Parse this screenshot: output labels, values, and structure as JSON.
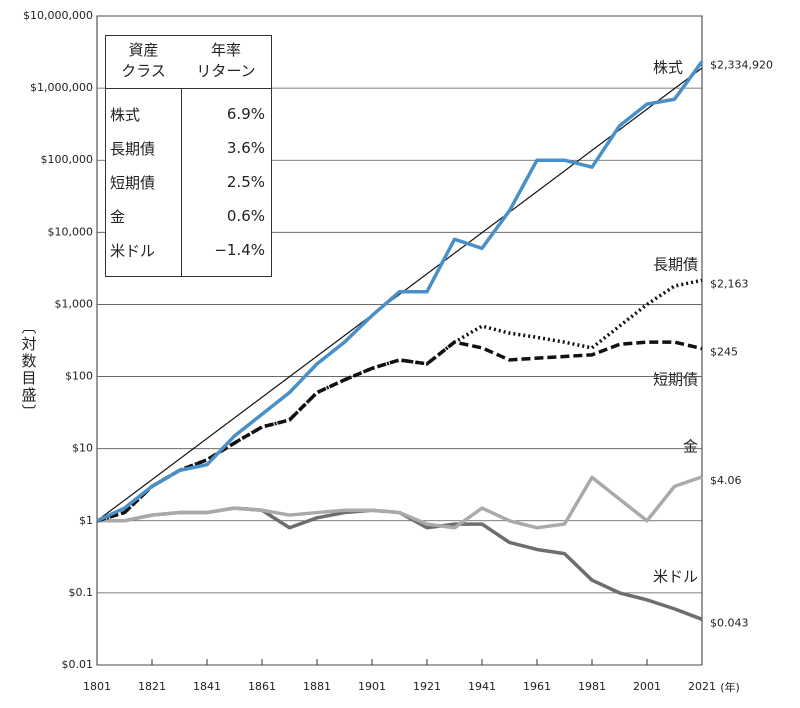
{
  "chart_data": {
    "type": "line",
    "log_y": true,
    "grid": true,
    "y_label": "〔対数目盛〕",
    "x_unit": "(年)",
    "x": [
      1801,
      1811,
      1821,
      1831,
      1841,
      1851,
      1861,
      1871,
      1881,
      1891,
      1901,
      1911,
      1921,
      1931,
      1941,
      1951,
      1961,
      1971,
      1981,
      1991,
      2001,
      2011,
      2021
    ],
    "xlim": [
      1801,
      2021
    ],
    "xticks": [
      1801,
      1821,
      1841,
      1861,
      1881,
      1901,
      1921,
      1941,
      1961,
      1981,
      2001,
      2021
    ],
    "ylim": [
      0.01,
      10000000
    ],
    "yticks": [
      {
        "value": 0.01,
        "label": "$0.01"
      },
      {
        "value": 0.1,
        "label": "$0.1"
      },
      {
        "value": 1,
        "label": "$1"
      },
      {
        "value": 10,
        "label": "$10"
      },
      {
        "value": 100,
        "label": "$100"
      },
      {
        "value": 1000,
        "label": "$1,000"
      },
      {
        "value": 10000,
        "label": "$10,000"
      },
      {
        "value": 100000,
        "label": "$100,000"
      },
      {
        "value": 1000000,
        "label": "$1,000,000"
      },
      {
        "value": 10000000,
        "label": "$10,000,000"
      }
    ],
    "series": [
      {
        "name": "株式",
        "color": "#4a90c8",
        "dash": "solid",
        "width": 3.5,
        "values": [
          1,
          1.5,
          3,
          5,
          6,
          15,
          30,
          60,
          150,
          300,
          700,
          1500,
          1500,
          8000,
          6000,
          20000,
          100000,
          100000,
          80000,
          300000,
          600000,
          700000,
          2334920
        ],
        "value_labels": [
          null,
          null,
          null,
          null,
          null,
          null,
          null,
          null,
          null,
          null,
          null,
          null,
          null,
          null,
          null,
          null,
          null,
          null,
          null,
          null,
          null,
          null,
          "$2,334,920"
        ]
      },
      {
        "name": "長期債",
        "color": "#111111",
        "dash": "dotted",
        "width": 3.5,
        "values": [
          1,
          1.3,
          3,
          5,
          7,
          12,
          20,
          25,
          60,
          90,
          130,
          170,
          150,
          300,
          500,
          400,
          350,
          300,
          250,
          500,
          1000,
          1800,
          2163
        ],
        "value_labels": [
          null,
          null,
          null,
          null,
          null,
          null,
          null,
          null,
          null,
          null,
          null,
          null,
          null,
          null,
          null,
          null,
          null,
          null,
          null,
          null,
          null,
          null,
          "$2,163"
        ]
      },
      {
        "name": "短期債",
        "color": "#111111",
        "dash": "dashed",
        "width": 3.5,
        "values": [
          1,
          1.3,
          3,
          5,
          7,
          12,
          20,
          25,
          60,
          90,
          130,
          170,
          150,
          300,
          250,
          170,
          180,
          190,
          200,
          280,
          300,
          300,
          245
        ],
        "value_labels": [
          null,
          null,
          null,
          null,
          null,
          null,
          null,
          null,
          null,
          null,
          null,
          null,
          null,
          null,
          null,
          null,
          null,
          null,
          null,
          null,
          null,
          null,
          "$245"
        ]
      },
      {
        "name": "金",
        "color": "#aaaaaa",
        "dash": "solid",
        "width": 3.5,
        "values": [
          1,
          1,
          1.2,
          1.3,
          1.3,
          1.5,
          1.4,
          1.2,
          1.3,
          1.4,
          1.4,
          1.3,
          0.9,
          0.8,
          1.5,
          1.0,
          0.8,
          0.9,
          4,
          2,
          1,
          3,
          4.06
        ],
        "value_labels": [
          null,
          null,
          null,
          null,
          null,
          null,
          null,
          null,
          null,
          null,
          null,
          null,
          null,
          null,
          null,
          null,
          null,
          null,
          null,
          null,
          null,
          null,
          "$4.06"
        ]
      },
      {
        "name": "米ドル",
        "color": "#6e6e6e",
        "dash": "solid",
        "width": 3.5,
        "values": [
          1,
          1,
          1.2,
          1.3,
          1.3,
          1.5,
          1.4,
          0.8,
          1.1,
          1.3,
          1.4,
          1.3,
          0.8,
          0.9,
          0.9,
          0.5,
          0.4,
          0.35,
          0.15,
          0.1,
          0.08,
          0.06,
          0.043
        ],
        "value_labels": [
          null,
          null,
          null,
          null,
          null,
          null,
          null,
          null,
          null,
          null,
          null,
          null,
          null,
          null,
          null,
          null,
          null,
          null,
          null,
          null,
          null,
          null,
          "$0.043"
        ]
      }
    ],
    "trend": {
      "x": [
        1801,
        2021
      ],
      "values": [
        1,
        1900000
      ],
      "color": "#111111"
    },
    "table": {
      "header": [
        [
          "資産",
          "クラス"
        ],
        [
          "年率",
          "リターン"
        ]
      ],
      "rows": [
        [
          "株式",
          "6.9%"
        ],
        [
          "長期債",
          "3.6%"
        ],
        [
          "短期債",
          "2.5%"
        ],
        [
          "金",
          "0.6%"
        ],
        [
          "米ドル",
          "−1.4%"
        ]
      ]
    }
  }
}
